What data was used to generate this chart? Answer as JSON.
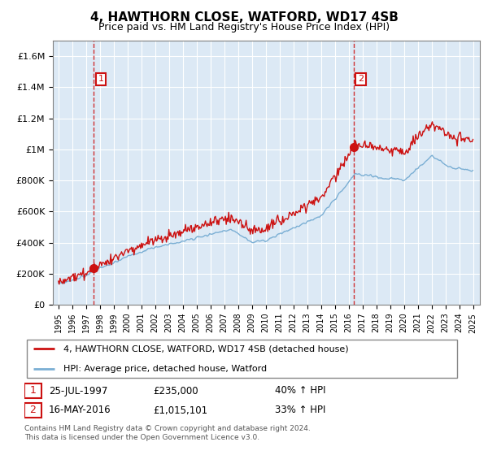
{
  "title": "4, HAWTHORN CLOSE, WATFORD, WD17 4SB",
  "subtitle": "Price paid vs. HM Land Registry's House Price Index (HPI)",
  "sale1_date": "25-JUL-1997",
  "sale1_price": 235000,
  "sale1_label": "40% ↑ HPI",
  "sale2_date": "16-MAY-2016",
  "sale2_price": 1015101,
  "sale2_label": "33% ↑ HPI",
  "legend_line1": "4, HAWTHORN CLOSE, WATFORD, WD17 4SB (detached house)",
  "legend_line2": "HPI: Average price, detached house, Watford",
  "footer": "Contains HM Land Registry data © Crown copyright and database right 2024.\nThis data is licensed under the Open Government Licence v3.0.",
  "hpi_color": "#7bafd4",
  "price_color": "#cc1111",
  "plot_bg": "#dce9f5",
  "ylim": [
    0,
    1700000
  ],
  "yticks": [
    0,
    200000,
    400000,
    600000,
    800000,
    1000000,
    1200000,
    1400000,
    1600000
  ],
  "ytick_labels": [
    "£0",
    "£200K",
    "£400K",
    "£600K",
    "£800K",
    "£1M",
    "£1.2M",
    "£1.4M",
    "£1.6M"
  ],
  "xmin": 1994.6,
  "xmax": 2025.5,
  "sale1_x": 1997.57,
  "sale2_x": 2016.37
}
